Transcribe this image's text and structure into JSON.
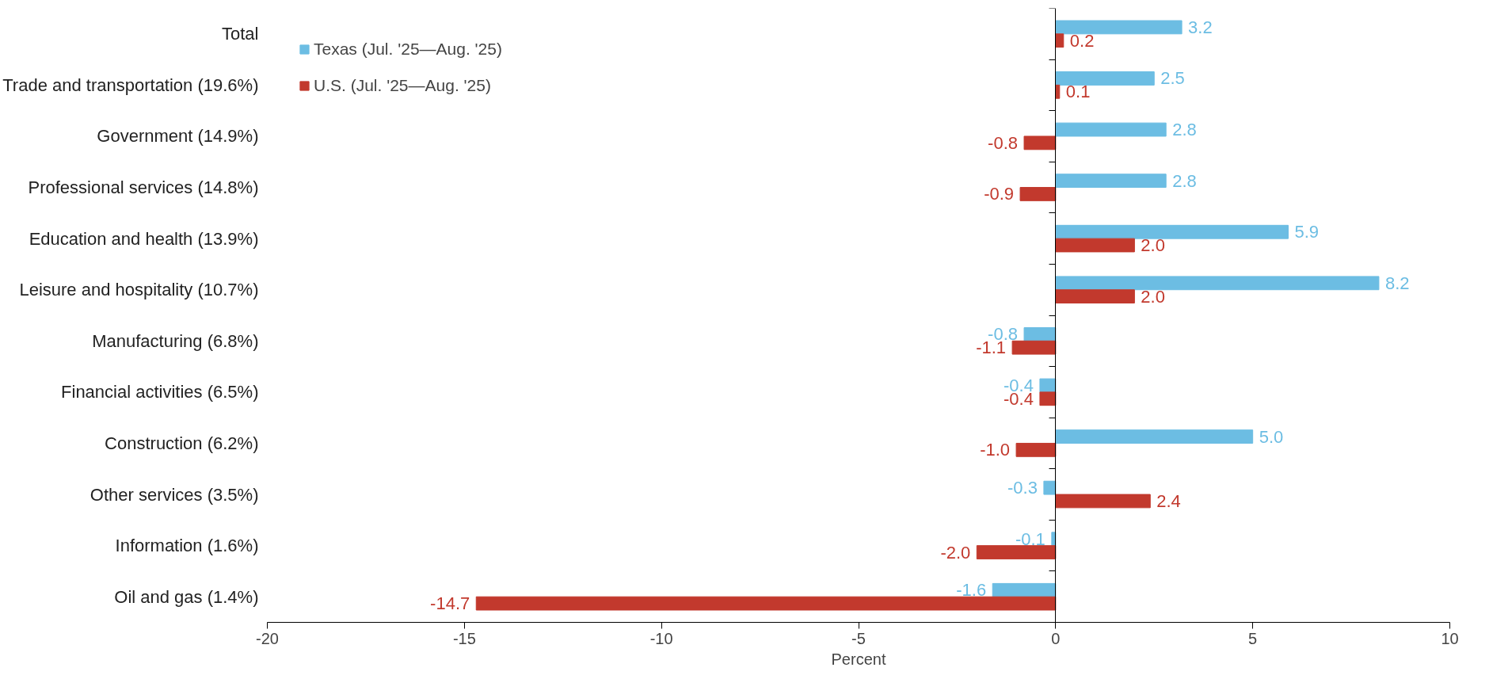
{
  "chart_data": {
    "type": "bar",
    "orientation": "horizontal",
    "xlabel": "Percent",
    "categories": [
      "Total",
      "Trade and transportation (19.6%)",
      "Government (14.9%)",
      "Professional services (14.8%)",
      "Education and health (13.9%)",
      "Leisure and hospitality (10.7%)",
      "Manufacturing (6.8%)",
      "Financial activities (6.5%)",
      "Construction (6.2%)",
      "Other services (3.5%)",
      "Information (1.6%)",
      "Oil and gas (1.4%)"
    ],
    "series": [
      {
        "name": "Texas (Jul. '25—Aug. '25)",
        "color": "#6cbde3",
        "values": [
          3.2,
          2.5,
          2.8,
          2.8,
          5.9,
          8.2,
          -0.8,
          -0.4,
          5.0,
          -0.3,
          -0.1,
          -1.6
        ],
        "value_labels": [
          "3.2",
          "2.5",
          "2.8",
          "2.8",
          "5.9",
          "8.2",
          "-0.8",
          "-0.4",
          "5.0",
          "-0.3",
          "-0.1",
          "-1.6"
        ]
      },
      {
        "name": "U.S. (Jul. '25—Aug. '25)",
        "color": "#c2392d",
        "values": [
          0.2,
          0.1,
          -0.8,
          -0.9,
          2.0,
          2.0,
          -1.1,
          -0.4,
          -1.0,
          2.4,
          -2.0,
          -14.7
        ],
        "value_labels": [
          "0.2",
          "0.1",
          "-0.8",
          "-0.9",
          "2.0",
          "2.0",
          "-1.1",
          "-0.4",
          "-1.0",
          "2.4",
          "-2.0",
          "-14.7"
        ]
      }
    ],
    "xlim": [
      -20,
      10
    ],
    "xticks": [
      -20,
      -15,
      -10,
      -5,
      0,
      5,
      10
    ],
    "legend": "top left"
  }
}
